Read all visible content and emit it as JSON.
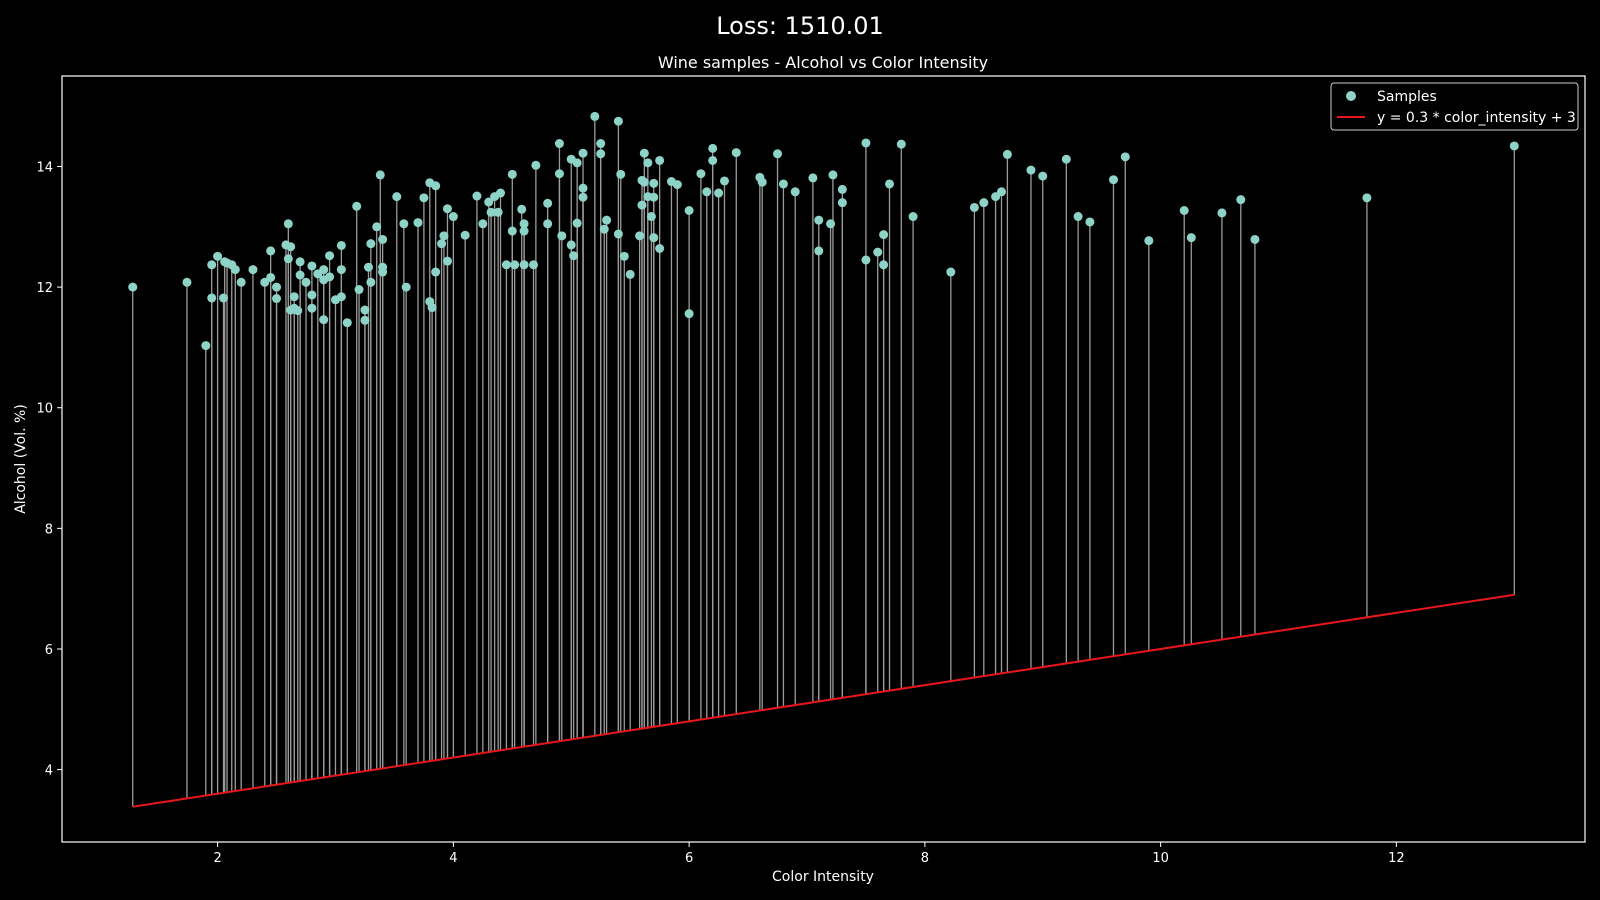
{
  "suptitle": "Loss: 1510.01",
  "chart_data": {
    "type": "scatter",
    "title": "Wine samples - Alcohol vs Color Intensity",
    "xlabel": "Color Intensity",
    "ylabel": "Alcohol (Vol. %)",
    "xlim": [
      0.68,
      13.6
    ],
    "ylim": [
      2.8,
      15.5
    ],
    "xticks": [
      2,
      4,
      6,
      8,
      10,
      12
    ],
    "yticks": [
      4,
      6,
      8,
      10,
      12,
      14
    ],
    "legend_position": "top-right",
    "colors": {
      "points": "#8dd3c7",
      "line": "#e8161b",
      "residual": "#9b9b9b",
      "background": "#000000",
      "axes": "#ffffff"
    },
    "model_line": {
      "label": "y = 0.3 * color_intensity + 3",
      "slope": 0.3,
      "intercept": 3
    },
    "series": [
      {
        "name": "Samples",
        "x": [
          1.28,
          1.74,
          1.9,
          1.95,
          1.95,
          2.0,
          2.05,
          2.06,
          2.08,
          2.12,
          2.15,
          2.2,
          2.3,
          2.4,
          2.45,
          2.45,
          2.5,
          2.5,
          2.58,
          2.6,
          2.6,
          2.62,
          2.62,
          2.65,
          2.65,
          2.68,
          2.7,
          2.7,
          2.75,
          2.8,
          2.8,
          2.8,
          2.85,
          2.9,
          2.9,
          2.9,
          2.95,
          2.95,
          3.0,
          3.05,
          3.05,
          3.05,
          3.1,
          3.18,
          3.2,
          3.25,
          3.25,
          3.28,
          3.3,
          3.3,
          3.35,
          3.38,
          3.4,
          3.4,
          3.4,
          3.52,
          3.58,
          3.6,
          3.7,
          3.75,
          3.8,
          3.8,
          3.82,
          3.85,
          3.85,
          3.9,
          3.92,
          3.95,
          3.95,
          4.0,
          4.1,
          4.2,
          4.25,
          4.3,
          4.32,
          4.35,
          4.38,
          4.4,
          4.45,
          4.5,
          4.5,
          4.52,
          4.58,
          4.6,
          4.6,
          4.6,
          4.68,
          4.7,
          4.8,
          4.8,
          4.9,
          4.9,
          4.92,
          5.0,
          5.0,
          5.02,
          5.05,
          5.05,
          5.1,
          5.1,
          5.1,
          5.2,
          5.25,
          5.25,
          5.28,
          5.3,
          5.4,
          5.4,
          5.42,
          5.45,
          5.5,
          5.58,
          5.6,
          5.6,
          5.62,
          5.62,
          5.65,
          5.65,
          5.68,
          5.7,
          5.7,
          5.7,
          5.75,
          5.75,
          5.85,
          5.9,
          6.0,
          6.0,
          6.1,
          6.15,
          6.2,
          6.2,
          6.25,
          6.3,
          6.4,
          6.6,
          6.62,
          6.75,
          6.8,
          6.9,
          7.05,
          7.1,
          7.1,
          7.2,
          7.22,
          7.3,
          7.3,
          7.5,
          7.5,
          7.6,
          7.65,
          7.65,
          7.7,
          7.8,
          7.9,
          8.22,
          8.42,
          8.5,
          8.6,
          8.65,
          8.7,
          8.9,
          9.0,
          9.2,
          9.3,
          9.4,
          9.6,
          9.7,
          9.9,
          10.2,
          10.26,
          10.52,
          10.68,
          10.8,
          11.75,
          13.0
        ],
        "y": [
          12.0,
          12.08,
          11.03,
          12.37,
          11.82,
          12.51,
          11.82,
          12.42,
          12.4,
          12.37,
          12.29,
          12.08,
          12.29,
          12.08,
          12.6,
          12.16,
          12.0,
          11.81,
          12.7,
          13.05,
          12.47,
          12.67,
          11.62,
          11.84,
          11.65,
          11.61,
          12.42,
          12.2,
          12.08,
          12.35,
          11.87,
          11.65,
          12.22,
          12.29,
          12.12,
          11.46,
          12.52,
          12.17,
          11.79,
          12.69,
          12.29,
          11.84,
          11.41,
          13.34,
          11.96,
          11.62,
          11.45,
          12.33,
          12.72,
          12.08,
          13.0,
          13.86,
          12.79,
          12.33,
          12.25,
          13.5,
          13.05,
          12.0,
          13.07,
          13.48,
          13.73,
          11.76,
          11.66,
          13.68,
          12.25,
          12.72,
          12.85,
          13.3,
          12.43,
          13.17,
          12.86,
          13.51,
          13.05,
          13.41,
          13.24,
          13.5,
          13.24,
          13.56,
          12.37,
          13.87,
          12.93,
          12.37,
          13.29,
          13.05,
          12.93,
          12.37,
          12.37,
          14.02,
          13.39,
          13.05,
          14.38,
          13.88,
          12.85,
          14.12,
          12.7,
          12.52,
          14.06,
          13.06,
          14.22,
          13.64,
          13.49,
          14.83,
          14.38,
          14.21,
          12.96,
          13.11,
          14.75,
          12.88,
          13.87,
          12.51,
          12.21,
          12.85,
          13.77,
          13.36,
          13.74,
          14.22,
          14.06,
          13.5,
          13.17,
          13.49,
          13.72,
          12.82,
          14.1,
          12.64,
          13.75,
          13.7,
          13.27,
          11.56,
          13.88,
          13.58,
          14.3,
          14.1,
          13.56,
          13.76,
          14.23,
          13.82,
          13.74,
          14.21,
          13.71,
          13.58,
          13.81,
          13.11,
          12.6,
          13.05,
          13.86,
          13.4,
          13.62,
          12.45,
          14.39,
          12.58,
          12.37,
          12.87,
          13.71,
          14.37,
          13.17,
          12.25,
          13.32,
          13.4,
          13.5,
          13.58,
          14.2,
          13.94,
          13.84,
          14.12,
          13.17,
          13.08,
          13.78,
          14.16,
          12.77,
          13.27,
          12.82,
          13.23,
          13.45,
          12.79,
          13.48,
          14.34
        ]
      }
    ]
  }
}
